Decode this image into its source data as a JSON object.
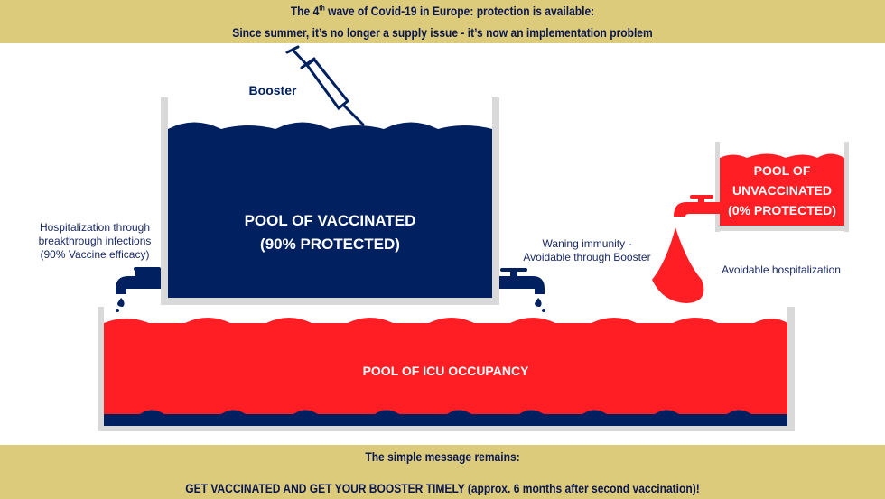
{
  "header": {
    "line1_prefix": "The 4",
    "line1_sup": "th",
    "line1_suffix": " wave of Covid-19 in Europe: protection is available:",
    "line2": "Since summer, it’s no longer a supply issue - it’s now an implementation problem"
  },
  "diagram": {
    "booster_label": "Booster",
    "vaccinated_pool": {
      "line1": "POOL OF VACCINATED",
      "line2": "(90% PROTECTED)"
    },
    "unvaccinated_pool": {
      "line1": "POOL OF",
      "line2": "UNVACCINATED",
      "line3": "(0% PROTECTED)"
    },
    "icu_pool": {
      "label": "POOL OF ICU OCCUPANCY"
    },
    "left_tap_label": {
      "line1": "Hospitalization through",
      "line2": "breakthrough infections",
      "line3": "(90% Vaccine efficacy)"
    },
    "right_tap_label": {
      "line1": "Waning immunity -",
      "line2": "Avoidable  through Booster"
    },
    "drop_label": "Avoidable hospitalization",
    "icons": [
      "syringe-icon",
      "faucet-icon",
      "drop-icon"
    ]
  },
  "footer": {
    "line1": "The simple message remains:",
    "line2": "GET VACCINATED AND GET YOUR BOOSTER TIMELY (approx. 6 months after second vaccination)!"
  },
  "colors": {
    "gold": "#dccb7a",
    "navy": "#002060",
    "red": "#ff1e24",
    "wall": "#d9d9d9",
    "text": "#1a2a66"
  }
}
